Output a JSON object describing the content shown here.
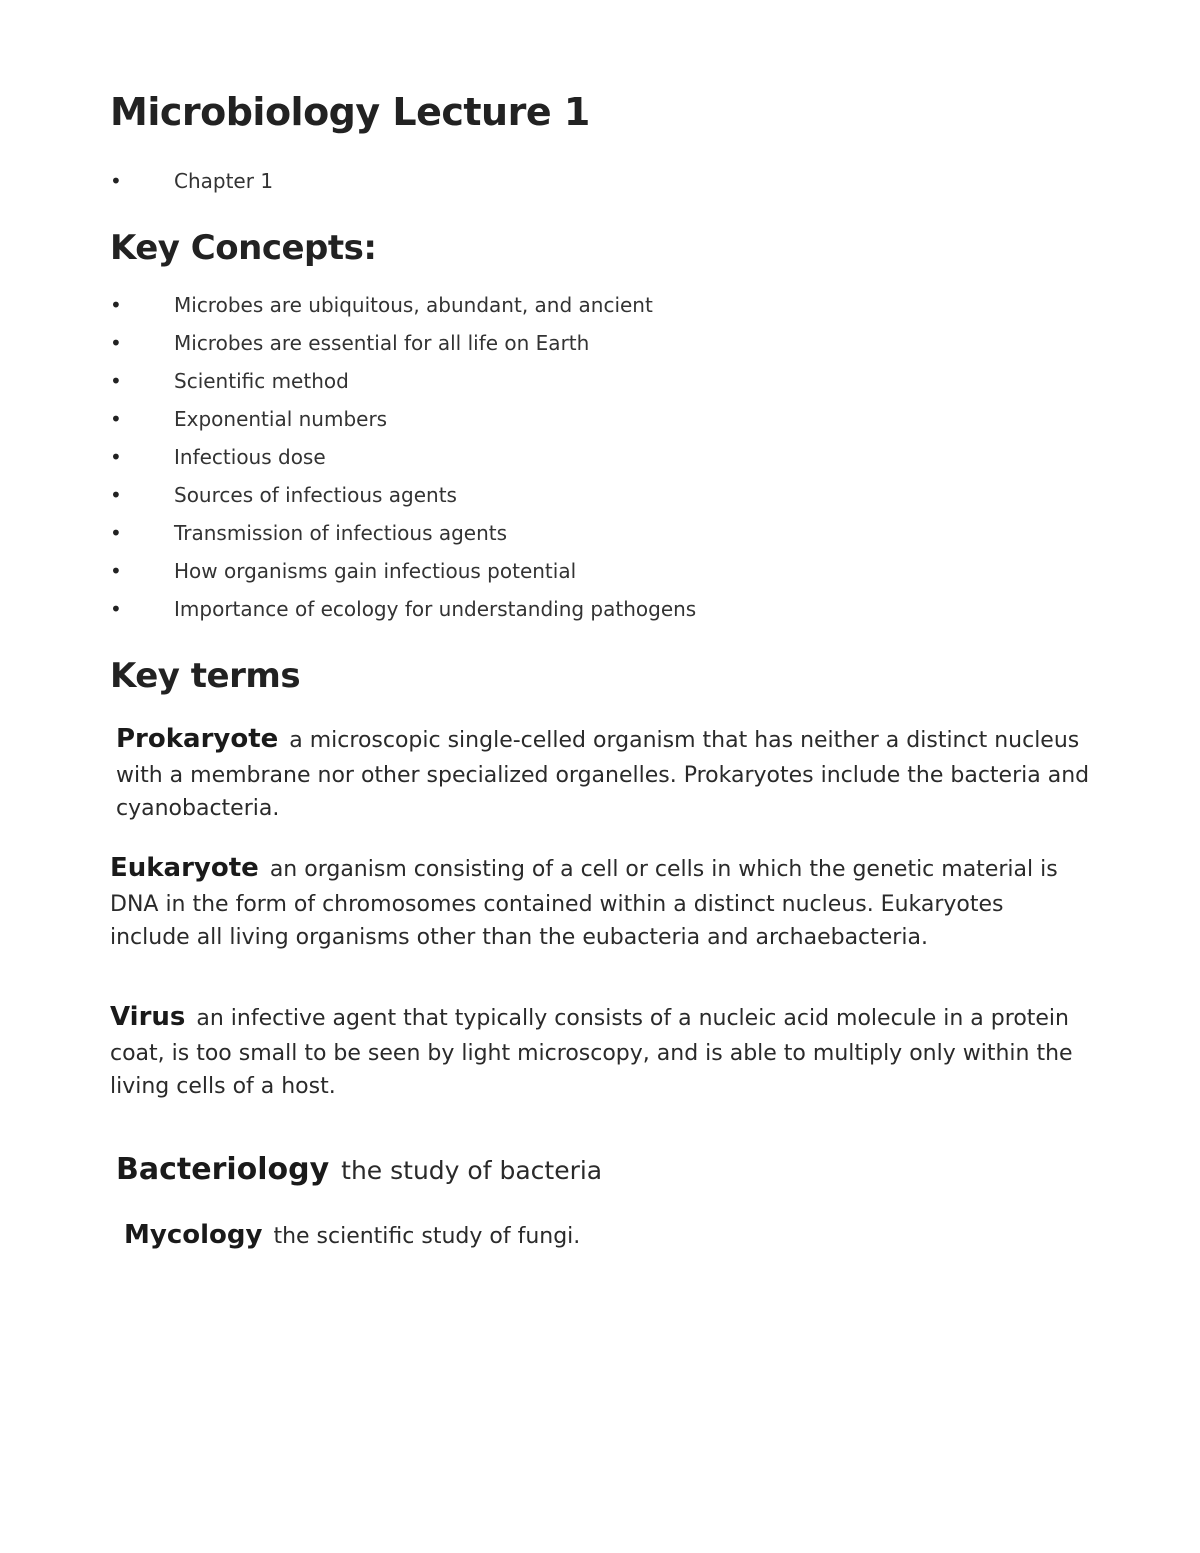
{
  "title": "Microbiology Lecture 1",
  "chapter_bullets": [
    "Chapter 1"
  ],
  "key_concepts_heading": "Key Concepts:",
  "key_concepts": [
    "Microbes are ubiquitous, abundant, and ancient",
    "Microbes are essential for all life on Earth",
    "Scientific method",
    "Exponential numbers",
    "Infectious dose",
    "Sources of infectious agents",
    "Transmission of infectious agents",
    "How organisms gain infectious potential",
    "Importance of ecology for understanding pathogens"
  ],
  "key_terms_heading": "Key terms",
  "terms": {
    "prokaryote": {
      "label": "Prokaryote",
      "definition": "a microscopic single-celled organism that has neither a distinct nucleus with a membrane nor other specialized organelles. Prokaryotes include the bacteria and cyanobacteria."
    },
    "eukaryote": {
      "label": "Eukaryote",
      "definition": "an organism consisting of a cell or cells in which the genetic material is DNA in the form of chromosomes contained within a distinct nucleus. Eukaryotes include all living organisms other than the eubacteria and archaebacteria."
    },
    "virus": {
      "label": "Virus",
      "definition": "an infective agent that typically consists of a nucleic acid molecule in a protein coat, is too small to be seen by light microscopy, and is able to multiply only within the living cells of a host."
    },
    "bacteriology": {
      "label": "Bacteriology",
      "definition": "the study of bacteria"
    },
    "mycology": {
      "label": "Mycology",
      "definition": "the scientific study of fungi."
    }
  },
  "colors": {
    "background": "#ffffff",
    "text": "#222222"
  }
}
